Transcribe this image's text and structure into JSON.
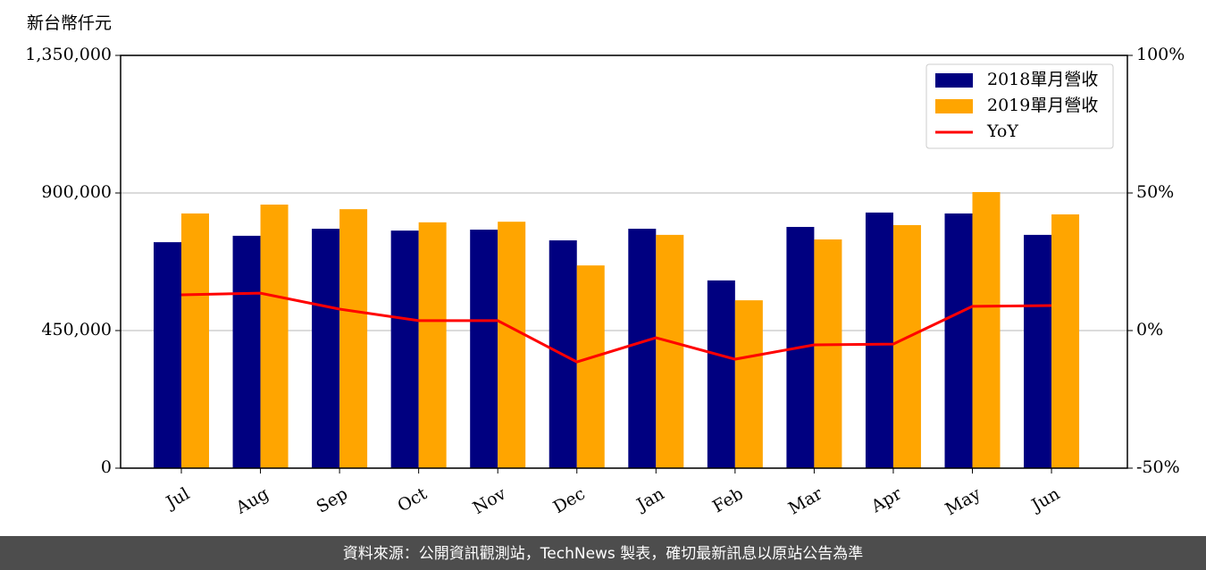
{
  "chart_data": {
    "type": "bar-line",
    "y_axis_title": "新台幣仟元",
    "categories": [
      "Jul",
      "Aug",
      "Sep",
      "Oct",
      "Nov",
      "Dec",
      "Jan",
      "Feb",
      "Mar",
      "Apr",
      "May",
      "Jun"
    ],
    "series": [
      {
        "name": "2018單月營收",
        "type": "bar",
        "color": "#000080",
        "values": [
          739000,
          760000,
          783000,
          777000,
          780000,
          745000,
          783000,
          614000,
          789000,
          836000,
          833000,
          763000
        ]
      },
      {
        "name": "2019單月營收",
        "type": "bar",
        "color": "#ffa500",
        "values": [
          833000,
          862000,
          847000,
          804000,
          806000,
          663000,
          763000,
          549000,
          748000,
          795000,
          903000,
          830000
        ]
      },
      {
        "name": "YoY",
        "type": "line",
        "axis": "y2",
        "color": "#ff0000",
        "values": [
          13.0,
          13.6,
          7.8,
          3.6,
          3.6,
          -11.4,
          -2.6,
          -10.4,
          -5.2,
          -4.9,
          8.8,
          9.1
        ]
      }
    ],
    "ylim": [
      0,
      1350000
    ],
    "yticks": [
      {
        "value": 0,
        "label": "0"
      },
      {
        "value": 450000,
        "label": "450,000"
      },
      {
        "value": 900000,
        "label": "900,000"
      },
      {
        "value": 1350000,
        "label": "1,350,000"
      }
    ],
    "y2lim": [
      -50,
      100
    ],
    "y2ticks": [
      {
        "value": -50,
        "label": "-50%"
      },
      {
        "value": 0,
        "label": "0%"
      },
      {
        "value": 50,
        "label": "50%"
      },
      {
        "value": 100,
        "label": "100%"
      }
    ],
    "grid": true,
    "legend": "upper right",
    "footer": "資料來源：公開資訊觀測站，TechNews 製表，確切最新訊息以原站公告為準"
  }
}
